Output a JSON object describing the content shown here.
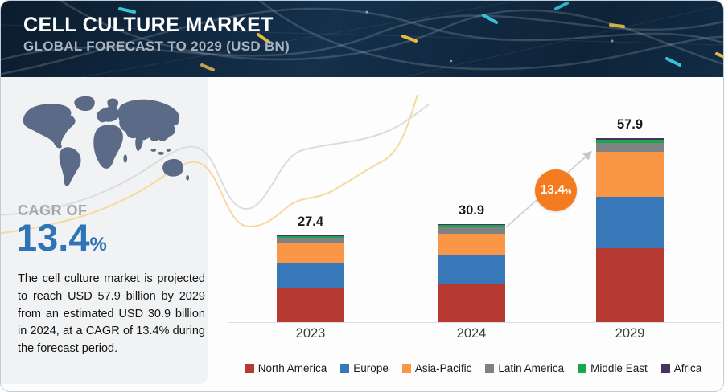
{
  "header": {
    "title": "CELL CULTURE MARKET",
    "subtitle": "GLOBAL FORECAST TO 2029 (USD BN)"
  },
  "sidebar": {
    "cagr_label": "CAGR OF",
    "cagr_value": "13.4",
    "cagr_unit": "%",
    "description": "The cell culture market is projected to reach USD 57.9 billion by 2029 from an estimated USD 30.9 billion in 2024, at a CAGR of 13.4% during the forecast period."
  },
  "chart_data": {
    "type": "bar",
    "stacked": true,
    "title": "Cell Culture Market, Global Forecast to 2029 (USD BN)",
    "categories": [
      "2023",
      "2024",
      "2029"
    ],
    "totals": [
      "27.4",
      "30.9",
      "57.9"
    ],
    "unit": "USD BN",
    "series": [
      {
        "name": "North America",
        "color": "#b63a31",
        "values": [
          10.8,
          12.2,
          23.4
        ]
      },
      {
        "name": "Europe",
        "color": "#3878b8",
        "values": [
          8.0,
          8.7,
          16.0
        ]
      },
      {
        "name": "Asia-Pacific",
        "color": "#f99746",
        "values": [
          6.2,
          7.0,
          14.3
        ]
      },
      {
        "name": "Latin America",
        "color": "#7f8285",
        "values": [
          1.5,
          2.0,
          2.7
        ]
      },
      {
        "name": "Middle East",
        "color": "#1aa64e",
        "values": [
          0.5,
          0.7,
          1.1
        ]
      },
      {
        "name": "Africa",
        "color": "#46345a",
        "values": [
          0.4,
          0.3,
          0.4
        ]
      }
    ],
    "annotation": {
      "cagr_badge_value": "13.4",
      "cagr_badge_unit": "%"
    },
    "legend_position": "bottom",
    "grid": false
  },
  "colors": {
    "accent_blue": "#2e74b6",
    "badge_orange": "#f47b20",
    "header_navy": "#122b44",
    "panel_gray": "#f1f2f3",
    "map_fill": "#5b6a86",
    "swoosh_gray": "#dcdcdd",
    "swoosh_yellow": "#f6d99e",
    "baseline_gray": "#dbdfe3"
  }
}
